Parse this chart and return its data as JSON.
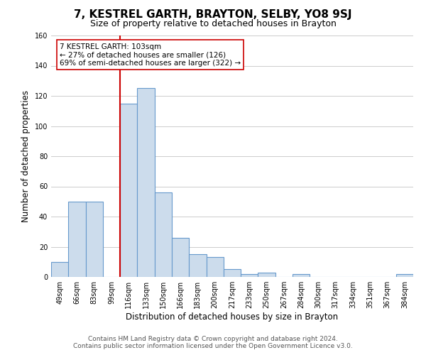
{
  "title": "7, KESTREL GARTH, BRAYTON, SELBY, YO8 9SJ",
  "subtitle": "Size of property relative to detached houses in Brayton",
  "xlabel": "Distribution of detached houses by size in Brayton",
  "ylabel": "Number of detached properties",
  "categories": [
    "49sqm",
    "66sqm",
    "83sqm",
    "99sqm",
    "116sqm",
    "133sqm",
    "150sqm",
    "166sqm",
    "183sqm",
    "200sqm",
    "217sqm",
    "233sqm",
    "250sqm",
    "267sqm",
    "284sqm",
    "300sqm",
    "317sqm",
    "334sqm",
    "351sqm",
    "367sqm",
    "384sqm"
  ],
  "values": [
    10,
    50,
    50,
    0,
    115,
    125,
    56,
    26,
    15,
    13,
    5,
    2,
    3,
    0,
    2,
    0,
    0,
    0,
    0,
    0,
    2
  ],
  "bar_color": "#ccdcec",
  "bar_edge_color": "#6699cc",
  "vline_color": "#cc0000",
  "annotation_box_text": "7 KESTREL GARTH: 103sqm\n← 27% of detached houses are smaller (126)\n69% of semi-detached houses are larger (322) →",
  "annotation_box_facecolor": "white",
  "annotation_box_edgecolor": "#cc0000",
  "ylim": [
    0,
    160
  ],
  "yticks": [
    0,
    20,
    40,
    60,
    80,
    100,
    120,
    140,
    160
  ],
  "footer_line1": "Contains HM Land Registry data © Crown copyright and database right 2024.",
  "footer_line2": "Contains public sector information licensed under the Open Government Licence v3.0.",
  "bg_color": "#ffffff",
  "grid_color": "#cccccc",
  "title_fontsize": 11,
  "subtitle_fontsize": 9,
  "axis_label_fontsize": 8.5,
  "tick_fontsize": 7,
  "footer_fontsize": 6.5,
  "annotation_fontsize": 7.5
}
